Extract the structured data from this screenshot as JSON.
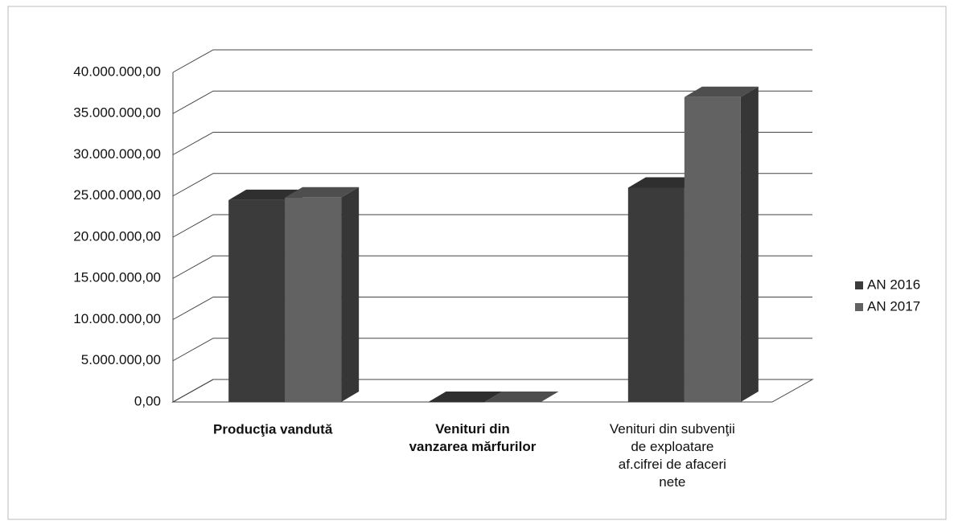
{
  "chart_data": {
    "type": "bar",
    "categories": [
      "Producţia vandută",
      "Venituri din\nvanzarea mărfurilor",
      "Venituri din subvenţii\nde exploatare\naf.cifrei de afaceri\nnete"
    ],
    "series": [
      {
        "name": "AN 2016",
        "color": "#3b3b3b",
        "values": [
          24500000,
          0,
          26000000
        ]
      },
      {
        "name": "AN 2017",
        "color": "#626262",
        "values": [
          24800000,
          0,
          37000000
        ]
      }
    ],
    "ylim": [
      0,
      40000000
    ],
    "yticks": [
      {
        "value": 0,
        "label": "0,00"
      },
      {
        "value": 5000000,
        "label": "5.000.000,00"
      },
      {
        "value": 10000000,
        "label": "10.000.000,00"
      },
      {
        "value": 15000000,
        "label": "15.000.000,00"
      },
      {
        "value": 20000000,
        "label": "20.000.000,00"
      },
      {
        "value": 25000000,
        "label": "25.000.000,00"
      },
      {
        "value": 30000000,
        "label": "30.000.000,00"
      },
      {
        "value": 35000000,
        "label": "35.000.000,00"
      },
      {
        "value": 40000000,
        "label": "40.000.000,00"
      }
    ],
    "grid": true,
    "legend": "right"
  }
}
